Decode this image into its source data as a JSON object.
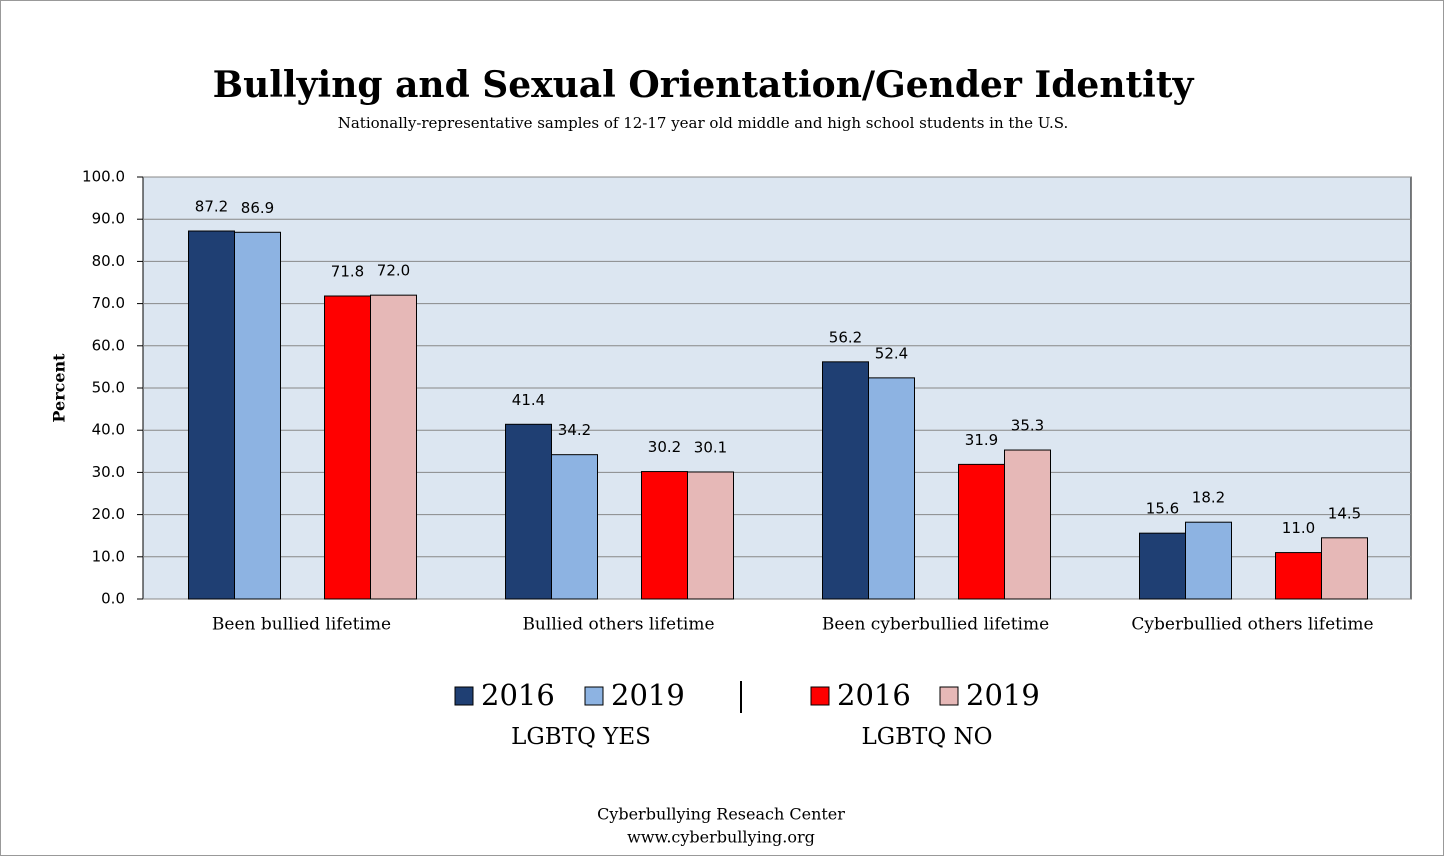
{
  "chart_data": {
    "type": "bar",
    "title": "Bullying and Sexual Orientation/Gender Identity",
    "subtitle": "Nationally-representative samples of 12-17 year old middle and high school students in the U.S.",
    "y_label": "Percent",
    "categories": [
      "Been bullied lifetime",
      "Bullied others lifetime",
      "Been cyberbullied lifetime",
      "Cyberbullied others lifetime"
    ],
    "series": [
      {
        "name": "2016",
        "color": "#1f3f73",
        "values": [
          87.2,
          41.4,
          56.2,
          15.6
        ],
        "value_labels": [
          "87.2",
          "41.4",
          "56.2",
          "15.6"
        ]
      },
      {
        "name": "2019",
        "color": "#8db3e2",
        "values": [
          86.9,
          34.2,
          52.4,
          18.2
        ],
        "value_labels": [
          "86.9",
          "34.2",
          "52.4",
          "18.2"
        ]
      },
      {
        "name": "2016",
        "color": "#ff0000",
        "values": [
          71.8,
          30.2,
          31.9,
          11.0
        ],
        "value_labels": [
          "71.8",
          "30.2",
          "31.9",
          "11.0"
        ]
      },
      {
        "name": "2019",
        "color": "#e6b8b7",
        "values": [
          72.0,
          30.1,
          35.3,
          14.5
        ],
        "value_labels": [
          "72.0",
          "30.1",
          "35.3",
          "14.5"
        ]
      }
    ],
    "legend_groups": [
      "LGBTQ YES",
      "LGBTQ NO"
    ],
    "ylim": [
      0,
      100
    ],
    "yticks": [
      {
        "value": 0,
        "label": "0.0"
      },
      {
        "value": 10,
        "label": "10.0"
      },
      {
        "value": 20,
        "label": "20.0"
      },
      {
        "value": 30,
        "label": "30.0"
      },
      {
        "value": 40,
        "label": "40.0"
      },
      {
        "value": 50,
        "label": "50.0"
      },
      {
        "value": 60,
        "label": "60.0"
      },
      {
        "value": 70,
        "label": "70.0"
      },
      {
        "value": 80,
        "label": "80.0"
      },
      {
        "value": 90,
        "label": "90.0"
      },
      {
        "value": 100,
        "label": "100.0"
      }
    ],
    "grid": true,
    "plot_background": "#dce6f1",
    "footer": [
      "Cyberbullying Reseach Center",
      "www.cyberbullying.org"
    ]
  }
}
